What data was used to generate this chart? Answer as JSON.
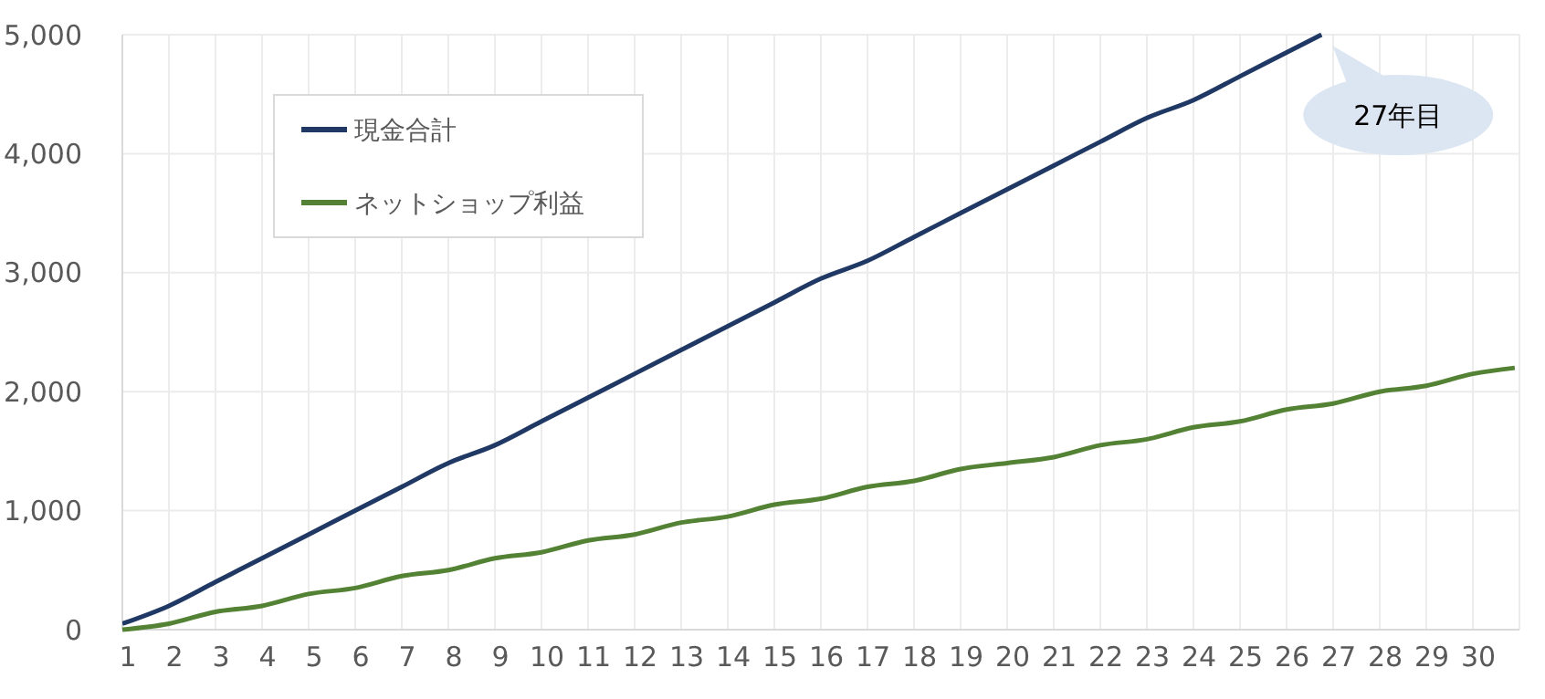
{
  "chart_data": {
    "type": "line",
    "xlim": [
      1,
      31
    ],
    "xticks": [
      1,
      2,
      3,
      4,
      5,
      6,
      7,
      8,
      9,
      10,
      11,
      12,
      13,
      14,
      15,
      16,
      17,
      18,
      19,
      20,
      21,
      22,
      23,
      24,
      25,
      26,
      27,
      28,
      29,
      30
    ],
    "ylim": [
      0,
      5000
    ],
    "yticks": [
      0,
      {
        "value": 1000,
        "label": "1,000"
      },
      {
        "value": 2000,
        "label": "2,000"
      },
      {
        "value": 3000,
        "label": "3,000"
      },
      {
        "value": 4000,
        "label": "4,000"
      },
      {
        "value": 5000,
        "label": "5,000"
      }
    ],
    "grid": true,
    "legend": "top left",
    "marker": "none",
    "line_style": "solid",
    "annotations": [
      "27年目"
    ],
    "series": [
      {
        "name": "現金合計",
        "color": "#203864",
        "x": [
          1,
          2,
          3,
          4,
          5,
          6,
          7,
          8,
          9,
          10,
          11,
          12,
          13,
          14,
          15,
          16,
          17,
          18,
          19,
          20,
          21,
          22,
          23,
          24,
          25,
          26,
          26.75
        ],
        "values": [
          50,
          200,
          400,
          600,
          800,
          1000,
          1200,
          1400,
          1550,
          1750,
          1950,
          2150,
          2350,
          2550,
          2750,
          2950,
          3100,
          3300,
          3500,
          3700,
          3900,
          4100,
          4300,
          4450,
          4650,
          4850,
          5000
        ]
      },
      {
        "name": "ネットショップ利益",
        "color": "#548235",
        "x": [
          1,
          2,
          3,
          4,
          5,
          6,
          7,
          8,
          9,
          10,
          11,
          12,
          13,
          14,
          15,
          16,
          17,
          18,
          19,
          20,
          21,
          22,
          23,
          24,
          25,
          26,
          27,
          28,
          29,
          30,
          30.9
        ],
        "values": [
          0,
          50,
          150,
          200,
          300,
          350,
          450,
          500,
          600,
          650,
          750,
          800,
          900,
          950,
          1050,
          1100,
          1200,
          1250,
          1350,
          1400,
          1450,
          1550,
          1600,
          1700,
          1750,
          1850,
          1900,
          2000,
          2050,
          2150,
          2200
        ]
      }
    ]
  }
}
